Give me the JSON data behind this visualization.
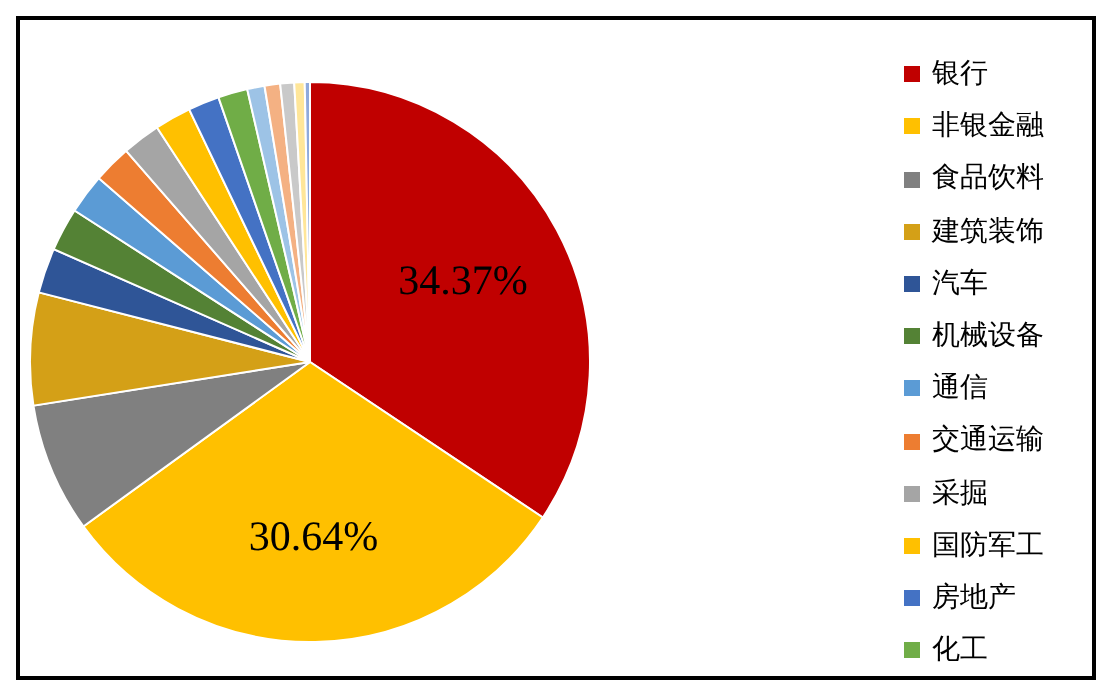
{
  "chart_data": {
    "type": "pie",
    "categories": [
      "银行",
      "非银金融",
      "食品饮料",
      "建筑装饰",
      "汽车",
      "机械设备",
      "通信",
      "交通运输",
      "采掘",
      "国防军工",
      "房地产",
      "化工",
      null,
      null,
      null,
      null,
      null
    ],
    "values": [
      34.37,
      30.64,
      7.5,
      6.49,
      2.6,
      2.5,
      2.3,
      2.2,
      2.2,
      2.1,
      1.8,
      1.7,
      1.0,
      0.9,
      0.8,
      0.6,
      0.3
    ],
    "colors": [
      "#c00000",
      "#ffc000",
      "#808080",
      "#d4a017",
      "#2f5597",
      "#548235",
      "#5b9bd5",
      "#ed7d31",
      "#a5a5a5",
      "#ffc000",
      "#4472c4",
      "#70ad47",
      "#9dc3e6",
      "#f4b183",
      "#c9c9c9",
      "#ffe699",
      "#8faadc"
    ],
    "value_labels": [
      "34.37%",
      "30.64%",
      null,
      null,
      null,
      null,
      null,
      null,
      null,
      null,
      null,
      null,
      null,
      null,
      null,
      null,
      null
    ],
    "legend": "right"
  }
}
